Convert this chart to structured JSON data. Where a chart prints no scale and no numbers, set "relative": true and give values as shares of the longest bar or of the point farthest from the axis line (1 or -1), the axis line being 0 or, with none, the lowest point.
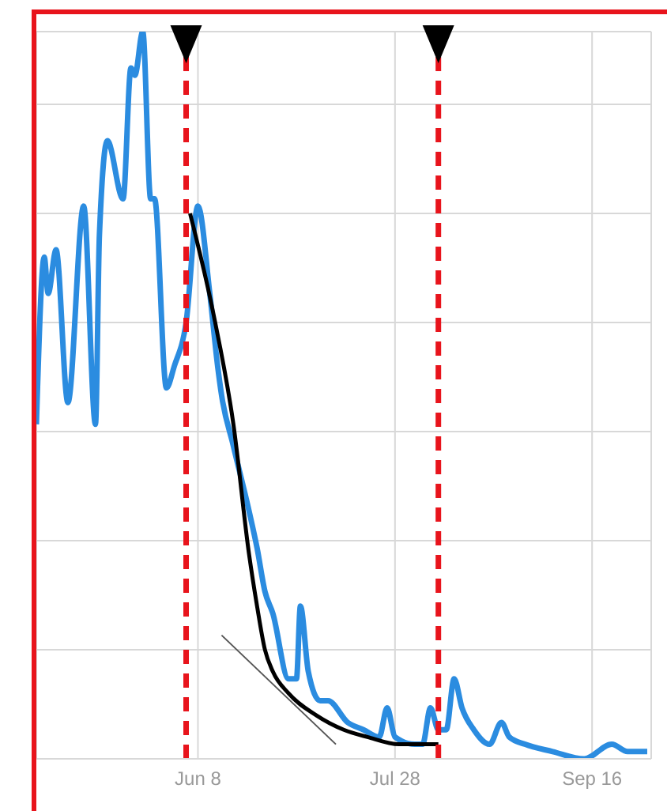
{
  "chart_data": {
    "type": "line",
    "relative": true,
    "grid": true,
    "xlim": [
      "--04-28",
      "--10-01"
    ],
    "xticks": [
      {
        "value": "--06-08",
        "label": "Jun 8"
      },
      {
        "value": "--07-28",
        "label": "Jul 28"
      },
      {
        "value": "--09-16",
        "label": "Sep 16"
      }
    ],
    "series": [
      {
        "color": "#2b8ce0",
        "x": [
          "--04-28",
          "--04-30",
          "--05-01",
          "--05-03",
          "--05-06",
          "--05-10",
          "--05-13",
          "--05-14",
          "--05-16",
          "--05-20",
          "--05-22",
          "--05-23",
          "--05-25",
          "--05-27",
          "--05-28",
          "--05-31",
          "--06-02",
          "--06-05",
          "--06-08",
          "--06-11",
          "--06-13",
          "--06-14",
          "--06-17",
          "--06-21",
          "--06-23",
          "--06-25",
          "--06-27",
          "--07-01",
          "--07-03",
          "--07-04",
          "--07-06",
          "--07-09",
          "--07-11",
          "--07-16",
          "--07-20",
          "--07-24",
          "--07-26",
          "--07-28",
          "--08-02",
          "--08-04",
          "--08-06",
          "--08-08",
          "--08-10",
          "--08-12",
          "--08-14",
          "--08-17",
          "--08-21",
          "--08-24",
          "--08-26",
          "--08-30",
          "--09-06",
          "--09-14",
          "--09-21",
          "--09-25",
          "--09-30"
        ],
        "values": [
          0.46,
          0.69,
          0.64,
          0.7,
          0.49,
          0.76,
          0.46,
          0.72,
          0.85,
          0.77,
          0.95,
          0.94,
          1,
          0.77,
          0.77,
          0.51,
          0.54,
          0.6,
          0.76,
          0.64,
          0.54,
          0.5,
          0.43,
          0.34,
          0.29,
          0.23,
          0.2,
          0.11,
          0.11,
          0.21,
          0.12,
          0.08,
          0.08,
          0.05,
          0.04,
          0.03,
          0.07,
          0.03,
          0.02,
          0.02,
          0.07,
          0.04,
          0.04,
          0.11,
          0.07,
          0.04,
          0.02,
          0.05,
          0.03,
          0.02,
          0.01,
          0.0,
          0.02,
          0.01,
          0.01
        ]
      },
      {
        "color": "#000000",
        "x": [
          "--06-06",
          "--06-12",
          "--06-17",
          "--06-21",
          "--06-23",
          "--06-25",
          "--06-27",
          "--07-01",
          "--07-08",
          "--07-15",
          "--07-21",
          "--07-29",
          "--08-08"
        ],
        "values": [
          0.75,
          0.61,
          0.46,
          0.28,
          0.21,
          0.15,
          0.12,
          0.09,
          0.06,
          0.04,
          0.03,
          0.02,
          0.02
        ]
      },
      {
        "color": "#555555",
        "x": [
          "--06-14",
          "--07-13"
        ],
        "values": [
          0.17,
          0.02
        ]
      }
    ],
    "ref_lines": [
      {
        "axis": "x",
        "value": "--06-05",
        "color": "#e8141c",
        "line_style": "dashed"
      },
      {
        "axis": "x",
        "value": "--08-08",
        "color": "#e8141c",
        "line_style": "dashed"
      }
    ]
  }
}
